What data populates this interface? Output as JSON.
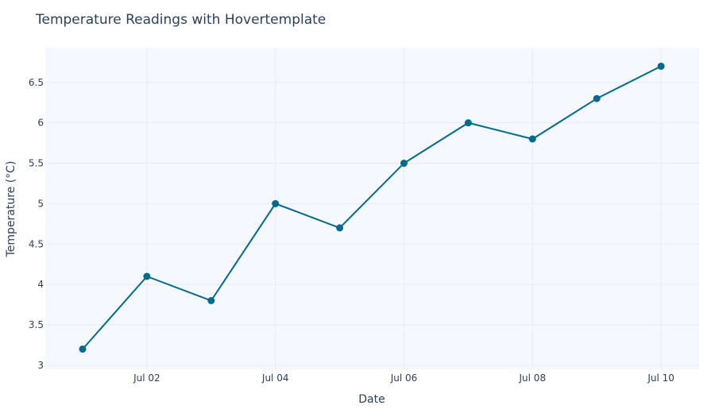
{
  "chart_data": {
    "type": "line",
    "title": "Temperature Readings with Hovertemplate",
    "xlabel": "Date",
    "ylabel": "Temperature (°C)",
    "x": [
      "Jul 01",
      "Jul 02",
      "Jul 03",
      "Jul 04",
      "Jul 05",
      "Jul 06",
      "Jul 07",
      "Jul 08",
      "Jul 09",
      "Jul 10"
    ],
    "x_ticks": [
      "Jul 02",
      "Jul 04",
      "Jul 06",
      "Jul 08",
      "Jul 10"
    ],
    "y_ticks": [
      3,
      3.5,
      4,
      4.5,
      5,
      5.5,
      6,
      6.5
    ],
    "ylim": [
      2.95,
      6.93
    ],
    "series": [
      {
        "values": [
          3.2,
          4.1,
          3.8,
          5.0,
          4.7,
          5.5,
          6.0,
          5.8,
          6.3,
          6.7
        ]
      }
    ],
    "grid": true,
    "colors": {
      "line": "#036a8c",
      "plot_bg": "#f5f9ff",
      "grid": "#e6ebf2",
      "text": "#2a3f5f"
    }
  }
}
